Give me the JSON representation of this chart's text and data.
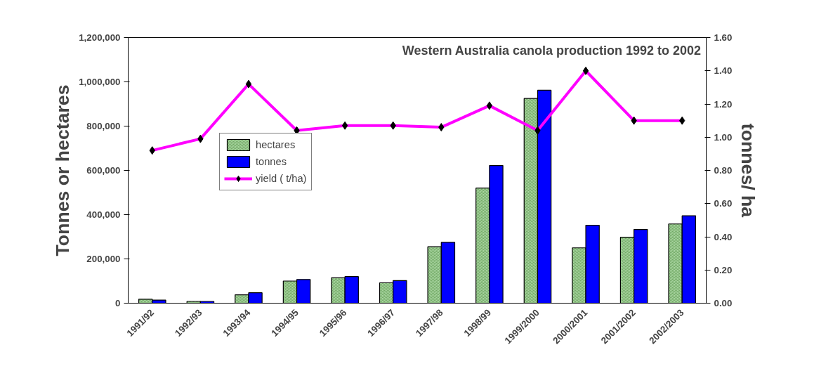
{
  "chart_data": {
    "type": "bar",
    "title": "Western Australia canola production 1992 to 2002",
    "ylabel": "Tonnes or hectares",
    "y2label": "tonnes/ ha",
    "categories": [
      "1991/92",
      "1992/93",
      "1993/94",
      "1994/95",
      "1995/96",
      "1996/97",
      "1997/98",
      "1998/99",
      "1999/2000",
      "2000/2001",
      "2001/2002",
      "2002/2003"
    ],
    "series": [
      {
        "name": "hectares",
        "color": "#a9d5a0",
        "values": [
          18000,
          8000,
          38000,
          100000,
          115000,
          92000,
          255000,
          520000,
          925000,
          250000,
          298000,
          358000
        ]
      },
      {
        "name": "tonnes",
        "color": "#0000ff",
        "values": [
          14000,
          8000,
          47000,
          107000,
          120000,
          102000,
          275000,
          622000,
          962000,
          352000,
          333000,
          395000
        ]
      },
      {
        "name": "yield ( t/ha)",
        "type": "line",
        "axis": "y2",
        "color": "#ff00ff",
        "marker": "diamond",
        "values": [
          0.92,
          0.99,
          1.32,
          1.04,
          1.07,
          1.07,
          1.06,
          1.19,
          1.04,
          1.4,
          1.1,
          1.1
        ]
      }
    ],
    "ylim": [
      0,
      1200000
    ],
    "yticks": [
      {
        "value": 0,
        "label": "0"
      },
      {
        "value": 200000,
        "label": "200,000"
      },
      {
        "value": 400000,
        "label": "400,000"
      },
      {
        "value": 600000,
        "label": "600,000"
      },
      {
        "value": 800000,
        "label": "800,000"
      },
      {
        "value": 1000000,
        "label": "1,000,000"
      },
      {
        "value": 1200000,
        "label": "1,200,000"
      }
    ],
    "y2lim": [
      0,
      1.6
    ],
    "y2ticks": [
      {
        "value": 0,
        "label": "0.00"
      },
      {
        "value": 0.2,
        "label": "0.20"
      },
      {
        "value": 0.4,
        "label": "0.40"
      },
      {
        "value": 0.6,
        "label": "0.60"
      },
      {
        "value": 0.8,
        "label": "0.80"
      },
      {
        "value": 1.0,
        "label": "1.00"
      },
      {
        "value": 1.2,
        "label": "1.20"
      },
      {
        "value": 1.4,
        "label": "1.40"
      },
      {
        "value": 1.6,
        "label": "1.60"
      }
    ],
    "grid": false,
    "legend": "left"
  }
}
